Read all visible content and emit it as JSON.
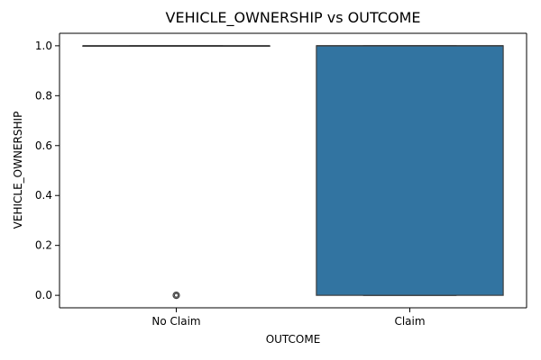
{
  "chart_data": {
    "type": "box",
    "title": "VEHICLE_OWNERSHIP vs OUTCOME",
    "xlabel": "OUTCOME",
    "ylabel": "VEHICLE_OWNERSHIP",
    "categories": [
      "No Claim",
      "Claim"
    ],
    "ylim": [
      -0.05,
      1.05
    ],
    "yticks": [
      0.0,
      0.2,
      0.4,
      0.6,
      0.8,
      1.0
    ],
    "ytick_labels": [
      "0.0",
      "0.2",
      "0.4",
      "0.6",
      "0.8",
      "1.0"
    ],
    "grid": false,
    "boxes": [
      {
        "category": "No Claim",
        "whisker_low": 1.0,
        "q1": 1.0,
        "median": 1.0,
        "q3": 1.0,
        "whisker_high": 1.0,
        "outliers": [
          0.0
        ]
      },
      {
        "category": "Claim",
        "whisker_low": 0.0,
        "q1": 0.0,
        "median": 1.0,
        "q3": 1.0,
        "whisker_high": 1.0,
        "outliers": []
      }
    ],
    "colors": {
      "box_fill": "#3274a1",
      "line": "#3f3f3f",
      "axis": "#000000"
    }
  }
}
